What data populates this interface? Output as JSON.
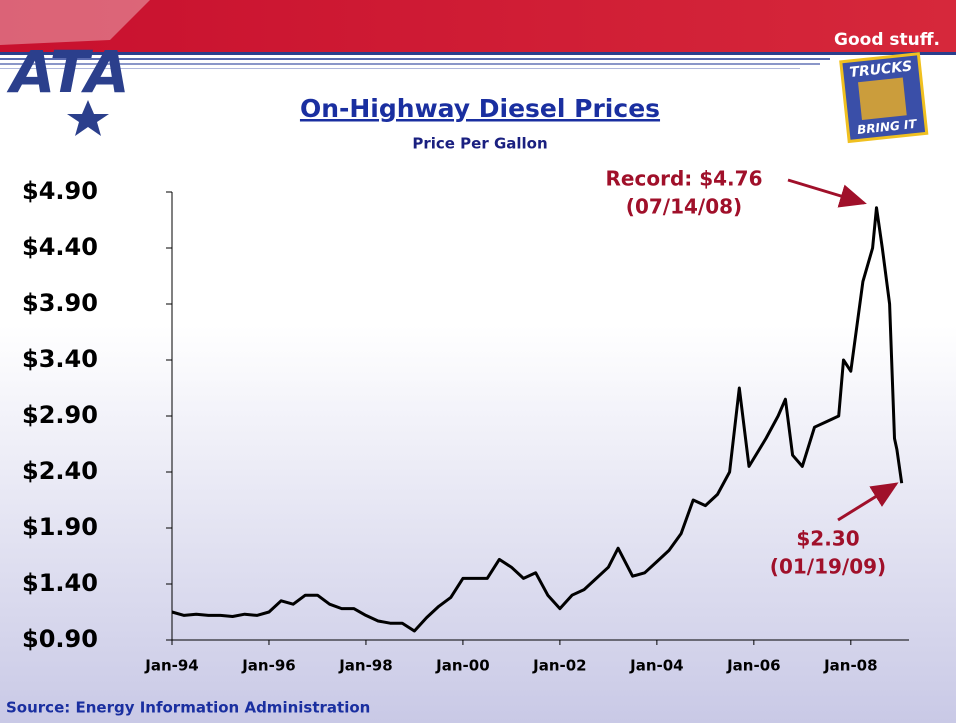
{
  "header": {
    "logo": "ATA",
    "slogan": "Good stuff.",
    "badge_top": "TRUCKS",
    "badge_bottom": "BRING IT"
  },
  "chart_data": {
    "type": "line",
    "title": "On-Highway Diesel Prices",
    "subtitle": "Price Per Gallon",
    "source": "Source: Energy Information Administration",
    "annotations": [
      {
        "lines": [
          "Record: $4.76",
          "(07/14/08)"
        ]
      },
      {
        "lines": [
          "$2.30",
          "(01/19/09)"
        ]
      }
    ],
    "color": "#000000",
    "x": [
      1994.0,
      1994.25,
      1994.5,
      1994.75,
      1995.0,
      1995.25,
      1995.5,
      1995.75,
      1996.0,
      1996.25,
      1996.5,
      1996.75,
      1997.0,
      1997.25,
      1997.5,
      1997.75,
      1998.0,
      1998.25,
      1998.5,
      1998.75,
      1999.0,
      1999.25,
      1999.5,
      1999.75,
      2000.0,
      2000.25,
      2000.5,
      2000.75,
      2001.0,
      2001.25,
      2001.5,
      2001.75,
      2002.0,
      2002.25,
      2002.5,
      2002.75,
      2003.0,
      2003.2,
      2003.5,
      2003.75,
      2004.0,
      2004.25,
      2004.5,
      2004.75,
      2005.0,
      2005.25,
      2005.5,
      2005.7,
      2005.9,
      2006.25,
      2006.5,
      2006.65,
      2006.8,
      2007.0,
      2007.25,
      2007.5,
      2007.75,
      2007.85,
      2008.0,
      2008.25,
      2008.45,
      2008.53,
      2008.65,
      2008.8,
      2008.9,
      2008.95,
      2009.05
    ],
    "values": [
      1.15,
      1.12,
      1.13,
      1.12,
      1.12,
      1.11,
      1.13,
      1.12,
      1.15,
      1.25,
      1.22,
      1.3,
      1.3,
      1.22,
      1.18,
      1.18,
      1.12,
      1.07,
      1.05,
      1.05,
      0.98,
      1.1,
      1.2,
      1.28,
      1.45,
      1.45,
      1.45,
      1.62,
      1.55,
      1.45,
      1.5,
      1.3,
      1.18,
      1.3,
      1.35,
      1.45,
      1.55,
      1.72,
      1.47,
      1.5,
      1.6,
      1.7,
      1.85,
      2.15,
      2.1,
      2.2,
      2.4,
      3.15,
      2.45,
      2.7,
      2.9,
      3.05,
      2.55,
      2.45,
      2.8,
      2.85,
      2.9,
      3.4,
      3.3,
      4.1,
      4.4,
      4.76,
      4.4,
      3.9,
      2.7,
      2.6,
      2.3
    ],
    "xlim": [
      1994,
      2009.2
    ],
    "xticks": [
      {
        "value": 1994,
        "label": "Jan-94"
      },
      {
        "value": 1996,
        "label": "Jan-96"
      },
      {
        "value": 1998,
        "label": "Jan-98"
      },
      {
        "value": 2000,
        "label": "Jan-00"
      },
      {
        "value": 2002,
        "label": "Jan-02"
      },
      {
        "value": 2004,
        "label": "Jan-04"
      },
      {
        "value": 2006,
        "label": "Jan-06"
      },
      {
        "value": 2008,
        "label": "Jan-08"
      }
    ],
    "ylim": [
      0.9,
      4.9
    ],
    "yticks": [
      {
        "value": 0.9,
        "label": "$0.90"
      },
      {
        "value": 1.4,
        "label": "$1.40"
      },
      {
        "value": 1.9,
        "label": "$1.90"
      },
      {
        "value": 2.4,
        "label": "$2.40"
      },
      {
        "value": 2.9,
        "label": "$2.90"
      },
      {
        "value": 3.4,
        "label": "$3.40"
      },
      {
        "value": 3.9,
        "label": "$3.90"
      },
      {
        "value": 4.4,
        "label": "$4.40"
      },
      {
        "value": 4.9,
        "label": "$4.90"
      }
    ]
  }
}
